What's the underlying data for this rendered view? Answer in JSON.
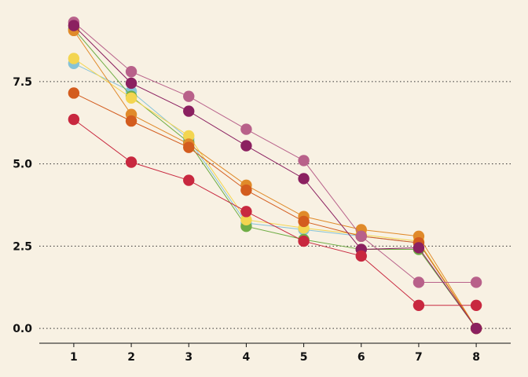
{
  "chart_data": {
    "type": "line",
    "title": "",
    "xlabel": "",
    "ylabel": "",
    "x": [
      1,
      2,
      3,
      4,
      5,
      6,
      7,
      8
    ],
    "xlim": [
      0.4,
      8.6
    ],
    "ylim": [
      -0.45,
      9.5
    ],
    "yticks": [
      0.0,
      2.5,
      5.0,
      7.5
    ],
    "ytick_labels": [
      "0.0",
      "2.5",
      "5.0",
      "7.5"
    ],
    "xtick_labels": [
      "1",
      "2",
      "3",
      "4",
      "5",
      "6",
      "7",
      "8"
    ],
    "grid": "horizontal dotted",
    "legend": "none",
    "background": "#f8f1e3",
    "series": [
      {
        "color": "#86c3d8",
        "values": [
          8.05,
          7.2,
          5.75,
          3.2,
          3.0,
          2.8,
          2.6,
          0.0
        ]
      },
      {
        "color": "#6fad45",
        "values": [
          9.1,
          7.05,
          5.65,
          3.1,
          2.7,
          2.4,
          2.4,
          0.0
        ]
      },
      {
        "color": "#f3d550",
        "values": [
          8.2,
          7.0,
          5.85,
          3.3,
          3.05,
          2.85,
          2.65,
          0.0
        ]
      },
      {
        "color": "#e08a2a",
        "values": [
          9.05,
          6.5,
          5.6,
          4.35,
          3.4,
          3.0,
          2.8,
          0.0
        ]
      },
      {
        "color": "#d35c1e",
        "values": [
          7.15,
          6.3,
          5.5,
          4.2,
          3.25,
          2.8,
          2.6,
          0.0
        ]
      },
      {
        "color": "#b8618a",
        "values": [
          9.3,
          7.8,
          7.05,
          6.05,
          5.1,
          2.8,
          1.4,
          1.4
        ]
      },
      {
        "color": "#8b2060",
        "values": [
          9.2,
          7.45,
          6.6,
          5.55,
          4.55,
          2.4,
          2.45,
          0.0
        ]
      },
      {
        "color": "#c8283f",
        "values": [
          6.35,
          5.05,
          4.5,
          3.55,
          2.65,
          2.2,
          0.7,
          0.7
        ]
      }
    ]
  }
}
